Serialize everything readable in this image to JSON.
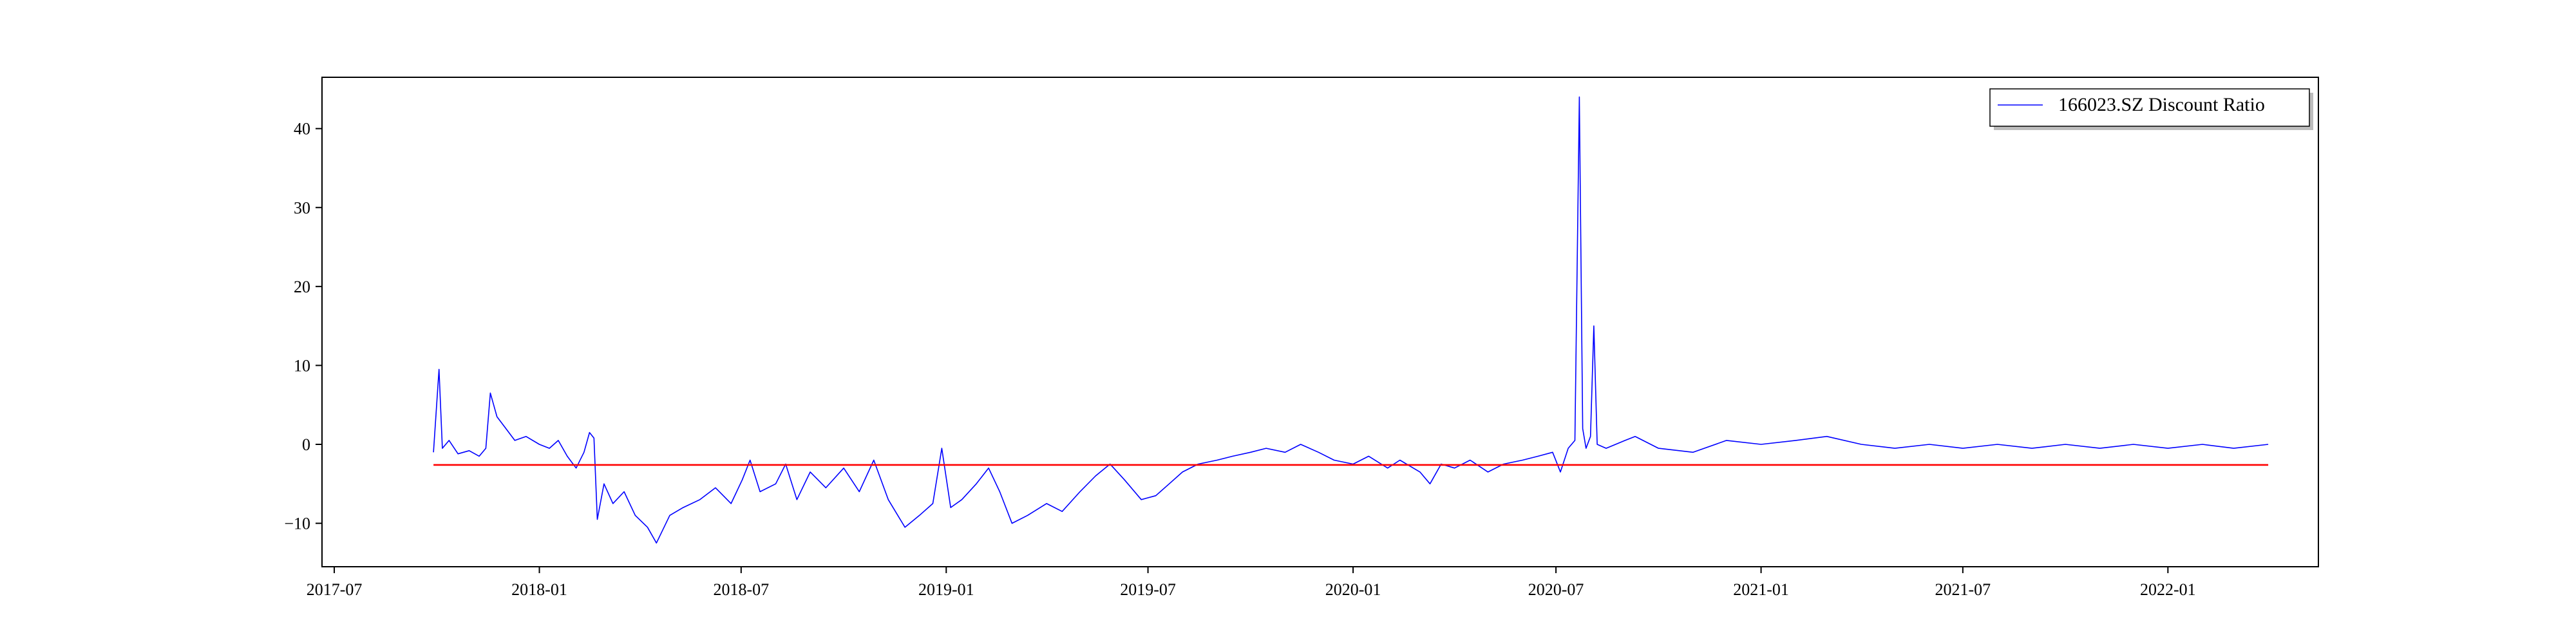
{
  "chart_data": {
    "type": "line",
    "title": "",
    "xlabel": "",
    "ylabel": "",
    "x_range": [
      "2017-06-20",
      "2022-05-16"
    ],
    "ylim": [
      -15.5,
      46.5
    ],
    "grid": false,
    "legend_position": "top-right",
    "x_ticks": [
      {
        "date": "2017-07-01",
        "label": "2017-07"
      },
      {
        "date": "2018-01-01",
        "label": "2018-01"
      },
      {
        "date": "2018-07-01",
        "label": "2018-07"
      },
      {
        "date": "2019-01-01",
        "label": "2019-01"
      },
      {
        "date": "2019-07-01",
        "label": "2019-07"
      },
      {
        "date": "2020-01-01",
        "label": "2020-01"
      },
      {
        "date": "2020-07-01",
        "label": "2020-07"
      },
      {
        "date": "2021-01-01",
        "label": "2021-01"
      },
      {
        "date": "2021-07-01",
        "label": "2021-07"
      },
      {
        "date": "2022-01-01",
        "label": "2022-01"
      }
    ],
    "y_ticks": [
      {
        "value": -10,
        "label": "−10"
      },
      {
        "value": 0,
        "label": "0"
      },
      {
        "value": 10,
        "label": "10"
      },
      {
        "value": 20,
        "label": "20"
      },
      {
        "value": 30,
        "label": "30"
      },
      {
        "value": 40,
        "label": "40"
      }
    ],
    "series": [
      {
        "name": "166023.SZ Discount Ratio",
        "color": "#0000ff",
        "points": [
          [
            "2017-09-28",
            -1.0
          ],
          [
            "2017-10-03",
            9.5
          ],
          [
            "2017-10-06",
            -0.5
          ],
          [
            "2017-10-12",
            0.5
          ],
          [
            "2017-10-20",
            -1.2
          ],
          [
            "2017-10-30",
            -0.8
          ],
          [
            "2017-11-08",
            -1.5
          ],
          [
            "2017-11-14",
            -0.5
          ],
          [
            "2017-11-18",
            6.5
          ],
          [
            "2017-11-24",
            3.5
          ],
          [
            "2017-12-02",
            2.0
          ],
          [
            "2017-12-10",
            0.5
          ],
          [
            "2017-12-20",
            1.0
          ],
          [
            "2018-01-01",
            0.0
          ],
          [
            "2018-01-10",
            -0.5
          ],
          [
            "2018-01-18",
            0.5
          ],
          [
            "2018-01-26",
            -1.5
          ],
          [
            "2018-02-03",
            -3.0
          ],
          [
            "2018-02-10",
            -1.0
          ],
          [
            "2018-02-15",
            1.5
          ],
          [
            "2018-02-19",
            0.8
          ],
          [
            "2018-02-22",
            -9.5
          ],
          [
            "2018-02-28",
            -5.0
          ],
          [
            "2018-03-08",
            -7.5
          ],
          [
            "2018-03-18",
            -6.0
          ],
          [
            "2018-03-28",
            -9.0
          ],
          [
            "2018-04-08",
            -10.5
          ],
          [
            "2018-04-16",
            -12.5
          ],
          [
            "2018-04-28",
            -9.0
          ],
          [
            "2018-05-10",
            -8.0
          ],
          [
            "2018-05-25",
            -7.0
          ],
          [
            "2018-06-08",
            -5.5
          ],
          [
            "2018-06-22",
            -7.5
          ],
          [
            "2018-07-02",
            -4.5
          ],
          [
            "2018-07-09",
            -2.0
          ],
          [
            "2018-07-18",
            -6.0
          ],
          [
            "2018-08-01",
            -5.0
          ],
          [
            "2018-08-10",
            -2.5
          ],
          [
            "2018-08-20",
            -7.0
          ],
          [
            "2018-09-01",
            -3.5
          ],
          [
            "2018-09-15",
            -5.5
          ],
          [
            "2018-10-01",
            -3.0
          ],
          [
            "2018-10-15",
            -6.0
          ],
          [
            "2018-10-28",
            -2.0
          ],
          [
            "2018-11-10",
            -7.0
          ],
          [
            "2018-11-25",
            -10.5
          ],
          [
            "2018-12-08",
            -9.0
          ],
          [
            "2018-12-20",
            -7.5
          ],
          [
            "2018-12-28",
            -0.5
          ],
          [
            "2019-01-05",
            -8.0
          ],
          [
            "2019-01-15",
            -7.0
          ],
          [
            "2019-01-28",
            -5.0
          ],
          [
            "2019-02-08",
            -3.0
          ],
          [
            "2019-02-18",
            -6.0
          ],
          [
            "2019-03-01",
            -10.0
          ],
          [
            "2019-03-15",
            -9.0
          ],
          [
            "2019-04-01",
            -7.5
          ],
          [
            "2019-04-15",
            -8.5
          ],
          [
            "2019-05-01",
            -6.0
          ],
          [
            "2019-05-15",
            -4.0
          ],
          [
            "2019-05-28",
            -2.5
          ],
          [
            "2019-06-10",
            -4.5
          ],
          [
            "2019-06-25",
            -7.0
          ],
          [
            "2019-07-08",
            -6.5
          ],
          [
            "2019-07-20",
            -5.0
          ],
          [
            "2019-08-01",
            -3.5
          ],
          [
            "2019-08-15",
            -2.5
          ],
          [
            "2019-09-01",
            -2.0
          ],
          [
            "2019-09-15",
            -1.5
          ],
          [
            "2019-10-01",
            -1.0
          ],
          [
            "2019-10-15",
            -0.5
          ],
          [
            "2019-11-01",
            -1.0
          ],
          [
            "2019-11-15",
            0.0
          ],
          [
            "2019-12-01",
            -1.0
          ],
          [
            "2019-12-15",
            -2.0
          ],
          [
            "2020-01-01",
            -2.5
          ],
          [
            "2020-01-15",
            -1.5
          ],
          [
            "2020-02-01",
            -3.0
          ],
          [
            "2020-02-12",
            -2.0
          ],
          [
            "2020-03-01",
            -3.5
          ],
          [
            "2020-03-10",
            -5.0
          ],
          [
            "2020-03-20",
            -2.5
          ],
          [
            "2020-04-01",
            -3.0
          ],
          [
            "2020-04-15",
            -2.0
          ],
          [
            "2020-05-01",
            -3.5
          ],
          [
            "2020-05-15",
            -2.5
          ],
          [
            "2020-06-01",
            -2.0
          ],
          [
            "2020-06-15",
            -1.5
          ],
          [
            "2020-06-28",
            -1.0
          ],
          [
            "2020-07-05",
            -3.5
          ],
          [
            "2020-07-12",
            -0.5
          ],
          [
            "2020-07-18",
            0.5
          ],
          [
            "2020-07-22",
            44.0
          ],
          [
            "2020-07-25",
            2.0
          ],
          [
            "2020-07-28",
            -0.5
          ],
          [
            "2020-08-01",
            1.0
          ],
          [
            "2020-08-04",
            15.0
          ],
          [
            "2020-08-07",
            0.0
          ],
          [
            "2020-08-15",
            -0.5
          ],
          [
            "2020-09-01",
            0.5
          ],
          [
            "2020-09-10",
            1.0
          ],
          [
            "2020-10-01",
            -0.5
          ],
          [
            "2020-11-01",
            -1.0
          ],
          [
            "2020-12-01",
            0.5
          ],
          [
            "2021-01-01",
            0.0
          ],
          [
            "2021-02-01",
            0.5
          ],
          [
            "2021-03-01",
            1.0
          ],
          [
            "2021-04-01",
            0.0
          ],
          [
            "2021-05-01",
            -0.5
          ],
          [
            "2021-06-01",
            0.0
          ],
          [
            "2021-07-01",
            -0.5
          ],
          [
            "2021-08-01",
            0.0
          ],
          [
            "2021-09-01",
            -0.5
          ],
          [
            "2021-10-01",
            0.0
          ],
          [
            "2021-11-01",
            -0.5
          ],
          [
            "2021-12-01",
            0.0
          ],
          [
            "2022-01-01",
            -0.5
          ],
          [
            "2022-02-01",
            0.0
          ],
          [
            "2022-03-01",
            -0.5
          ],
          [
            "2022-04-01",
            0.0
          ]
        ]
      },
      {
        "name": "",
        "color": "#ff0000",
        "points": [
          [
            "2017-09-28",
            -2.6
          ],
          [
            "2022-04-01",
            -2.6
          ]
        ]
      }
    ]
  }
}
